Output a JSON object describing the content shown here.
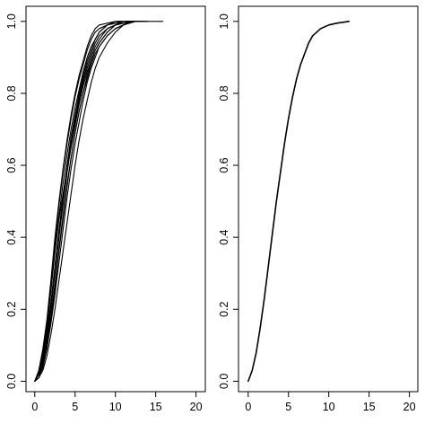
{
  "chart_data": [
    {
      "type": "line",
      "title": "",
      "xlabel": "",
      "ylabel": "",
      "xlim": [
        0,
        20
      ],
      "ylim": [
        0,
        1
      ],
      "xticks": [
        0,
        5,
        10,
        15,
        20
      ],
      "yticks": [
        0.0,
        0.2,
        0.4,
        0.6,
        0.8,
        1.0
      ],
      "xtick_labels": [
        "0",
        "5",
        "10",
        "15",
        "20"
      ],
      "ytick_labels": [
        "0.0",
        "0.2",
        "0.4",
        "0.6",
        "0.8",
        "1.0"
      ],
      "grid": false,
      "legend": "none",
      "line_color": "#000000",
      "series": [
        {
          "x": [
            0.0,
            0.5,
            1.0,
            1.5,
            2.0,
            2.5,
            3.0,
            3.5,
            4.0,
            4.5,
            5.0,
            5.5,
            6.0,
            6.5,
            7.0,
            7.5,
            8.0,
            8.5,
            9.0,
            10.0,
            11.0,
            12.0,
            15.9
          ],
          "y": [
            0.0,
            0.02,
            0.06,
            0.14,
            0.26,
            0.36,
            0.45,
            0.52,
            0.59,
            0.66,
            0.73,
            0.79,
            0.84,
            0.88,
            0.91,
            0.94,
            0.96,
            0.97,
            0.98,
            0.99,
            0.995,
            1.0,
            1.0
          ]
        },
        {
          "x": [
            0.0,
            0.5,
            1.0,
            1.5,
            2.0,
            2.5,
            3.0,
            3.5,
            4.0,
            4.5,
            5.0,
            5.5,
            6.0,
            6.5,
            7.0,
            7.5,
            8.0,
            9.0,
            10.0,
            11.0
          ],
          "y": [
            0.0,
            0.03,
            0.09,
            0.17,
            0.28,
            0.4,
            0.5,
            0.59,
            0.67,
            0.74,
            0.8,
            0.85,
            0.89,
            0.93,
            0.96,
            0.98,
            0.99,
            0.995,
            1.0,
            1.0
          ]
        },
        {
          "x": [
            0.0,
            0.5,
            1.0,
            1.5,
            2.0,
            2.5,
            3.0,
            3.5,
            4.0,
            4.5,
            5.0,
            5.5,
            6.0,
            6.5,
            7.0,
            7.5,
            8.0,
            9.0,
            10.0,
            11.0,
            12.0,
            13.5
          ],
          "y": [
            0.0,
            0.01,
            0.04,
            0.09,
            0.16,
            0.24,
            0.33,
            0.42,
            0.51,
            0.59,
            0.66,
            0.72,
            0.78,
            0.83,
            0.87,
            0.9,
            0.93,
            0.96,
            0.98,
            0.99,
            1.0,
            1.0
          ]
        },
        {
          "x": [
            0.0,
            0.5,
            1.0,
            1.5,
            2.0,
            2.5,
            3.0,
            3.5,
            4.0,
            4.5,
            5.0,
            5.5,
            6.0,
            6.5,
            7.0,
            7.5,
            8.0,
            9.0,
            10.0,
            11.0,
            12.0
          ],
          "y": [
            0.0,
            0.01,
            0.05,
            0.11,
            0.2,
            0.3,
            0.4,
            0.49,
            0.58,
            0.66,
            0.72,
            0.78,
            0.83,
            0.87,
            0.9,
            0.93,
            0.95,
            0.98,
            0.99,
            1.0,
            1.0
          ]
        },
        {
          "x": [
            0.0,
            0.5,
            1.0,
            1.5,
            2.0,
            2.5,
            3.0,
            3.5,
            4.0,
            4.5,
            5.0,
            5.5,
            6.0,
            6.5,
            7.0,
            7.5,
            8.0,
            9.0,
            10.0,
            11.0,
            12.0,
            13.0
          ],
          "y": [
            0.0,
            0.01,
            0.04,
            0.1,
            0.18,
            0.27,
            0.37,
            0.46,
            0.55,
            0.62,
            0.69,
            0.75,
            0.8,
            0.84,
            0.88,
            0.91,
            0.93,
            0.96,
            0.98,
            0.99,
            1.0,
            1.0
          ]
        },
        {
          "x": [
            0.0,
            0.5,
            1.0,
            1.5,
            2.0,
            2.5,
            3.0,
            3.5,
            4.0,
            4.5,
            5.0,
            5.5,
            6.0,
            6.5,
            7.0,
            7.5,
            8.0,
            8.5,
            9.0,
            10.0,
            11.0,
            12.0
          ],
          "y": [
            0.0,
            0.02,
            0.07,
            0.15,
            0.25,
            0.36,
            0.46,
            0.55,
            0.63,
            0.7,
            0.76,
            0.81,
            0.86,
            0.9,
            0.93,
            0.95,
            0.97,
            0.98,
            0.99,
            0.995,
            1.0,
            1.0
          ]
        },
        {
          "x": [
            0.0,
            0.5,
            1.0,
            1.5,
            2.0,
            2.5,
            3.0,
            3.5,
            4.0,
            4.5,
            5.0,
            5.5,
            6.0,
            6.5,
            7.0,
            7.5,
            8.0,
            9.0,
            10.0,
            11.0,
            12.5,
            14.0
          ],
          "y": [
            0.0,
            0.01,
            0.03,
            0.07,
            0.13,
            0.2,
            0.28,
            0.36,
            0.44,
            0.52,
            0.6,
            0.67,
            0.73,
            0.78,
            0.83,
            0.87,
            0.9,
            0.94,
            0.97,
            0.99,
            1.0,
            1.0
          ]
        },
        {
          "x": [
            0.0,
            0.5,
            1.0,
            1.5,
            2.0,
            2.5,
            3.0,
            3.5,
            4.0,
            4.5,
            5.0,
            5.5,
            6.0,
            6.5,
            7.0,
            7.5,
            8.0,
            9.0,
            10.0,
            11.0,
            12.0
          ],
          "y": [
            0.0,
            0.02,
            0.06,
            0.13,
            0.22,
            0.32,
            0.42,
            0.51,
            0.6,
            0.68,
            0.74,
            0.8,
            0.85,
            0.89,
            0.92,
            0.95,
            0.97,
            0.99,
            0.995,
            1.0,
            1.0
          ]
        },
        {
          "x": [
            0.0,
            0.5,
            1.0,
            1.5,
            2.0,
            2.5,
            3.0,
            3.5,
            4.0,
            4.5,
            5.0,
            5.5,
            6.0,
            6.5,
            7.0,
            7.5,
            8.0,
            9.0,
            10.0,
            11.0,
            12.0,
            13.5
          ],
          "y": [
            0.0,
            0.01,
            0.04,
            0.09,
            0.17,
            0.26,
            0.36,
            0.45,
            0.54,
            0.62,
            0.69,
            0.75,
            0.8,
            0.85,
            0.89,
            0.92,
            0.94,
            0.97,
            0.99,
            0.995,
            1.0,
            1.0
          ]
        },
        {
          "x": [
            0.0,
            0.5,
            1.0,
            1.5,
            2.0,
            2.5,
            3.0,
            3.5,
            4.0,
            4.5,
            5.0,
            5.5,
            6.0,
            6.5,
            7.0,
            7.5,
            8.0,
            9.0,
            10.0,
            11.0
          ],
          "y": [
            0.0,
            0.03,
            0.08,
            0.16,
            0.27,
            0.38,
            0.49,
            0.58,
            0.66,
            0.73,
            0.79,
            0.84,
            0.88,
            0.92,
            0.95,
            0.97,
            0.98,
            0.99,
            1.0,
            1.0
          ]
        },
        {
          "x": [
            0.0,
            0.5,
            1.0,
            1.5,
            2.0,
            2.5,
            3.0,
            3.5,
            4.0,
            4.5,
            5.0,
            5.5,
            6.0,
            6.5,
            7.0,
            7.5,
            8.0,
            9.0,
            10.0,
            11.0,
            12.0,
            13.0
          ],
          "y": [
            0.0,
            0.01,
            0.05,
            0.12,
            0.21,
            0.31,
            0.41,
            0.5,
            0.58,
            0.65,
            0.71,
            0.77,
            0.82,
            0.86,
            0.89,
            0.92,
            0.94,
            0.97,
            0.99,
            0.995,
            1.0,
            1.0
          ]
        }
      ]
    },
    {
      "type": "line",
      "title": "",
      "xlabel": "",
      "ylabel": "",
      "xlim": [
        0,
        20
      ],
      "ylim": [
        0,
        1
      ],
      "xticks": [
        0,
        5,
        10,
        15,
        20
      ],
      "yticks": [
        0.0,
        0.2,
        0.4,
        0.6,
        0.8,
        1.0
      ],
      "xtick_labels": [
        "0",
        "5",
        "10",
        "15",
        "20"
      ],
      "ytick_labels": [
        "0.0",
        "0.2",
        "0.4",
        "0.6",
        "0.8",
        "1.0"
      ],
      "grid": false,
      "legend": "none",
      "line_color": "#000000",
      "series": [
        {
          "x": [
            0.0,
            0.5,
            1.0,
            1.5,
            2.0,
            2.5,
            3.0,
            3.5,
            4.0,
            4.5,
            5.0,
            5.5,
            6.0,
            6.5,
            7.0,
            7.5,
            8.0,
            8.5,
            9.0,
            9.5,
            10.0,
            11.0,
            12.5
          ],
          "y": [
            0.0,
            0.03,
            0.08,
            0.15,
            0.23,
            0.32,
            0.41,
            0.5,
            0.58,
            0.66,
            0.73,
            0.79,
            0.84,
            0.88,
            0.91,
            0.94,
            0.96,
            0.97,
            0.98,
            0.985,
            0.99,
            0.995,
            1.0
          ]
        }
      ]
    }
  ]
}
